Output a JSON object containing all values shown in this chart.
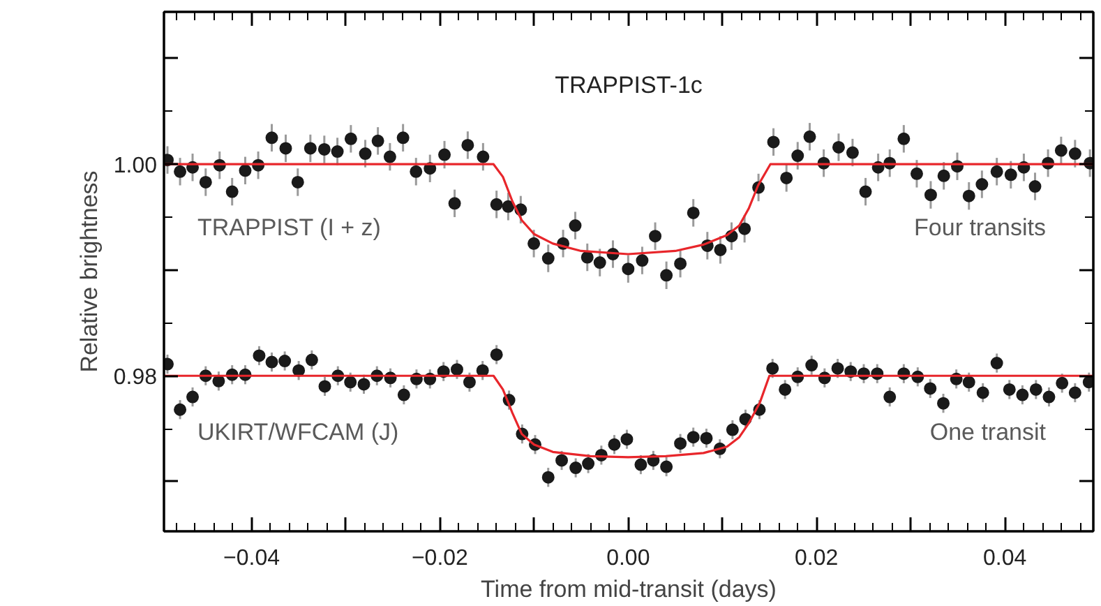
{
  "chart_data": {
    "type": "scatter",
    "title": "TRAPPIST-1c",
    "xlabel": "Time from mid-transit (days)",
    "ylabel": "Relative brightness",
    "annotations": [
      "Four transits",
      "One transit"
    ],
    "xlim": [
      -0.0493,
      0.0494
    ],
    "ylim": [
      0.9653,
      1.0144
    ],
    "xticks": [
      {
        "value": -0.04,
        "label": "−0.04"
      },
      {
        "value": -0.03,
        "label": null
      },
      {
        "value": -0.02,
        "label": "−0.02"
      },
      {
        "value": -0.01,
        "label": null
      },
      {
        "value": 0.0,
        "label": "0.00"
      },
      {
        "value": 0.01,
        "label": null
      },
      {
        "value": 0.02,
        "label": "0.02"
      },
      {
        "value": 0.03,
        "label": null
      },
      {
        "value": 0.04,
        "label": "0.04"
      }
    ],
    "yticks": [
      {
        "value": 0.97,
        "label": null
      },
      {
        "value": 0.98,
        "label": "0.98"
      },
      {
        "value": 0.99,
        "label": null
      },
      {
        "value": 1.0,
        "label": "1.00"
      },
      {
        "value": 1.01,
        "label": null
      }
    ],
    "grid": false,
    "series": [
      {
        "name": "TRAPPIST (I + z)",
        "marker": "circle",
        "color": "#1a1a1a",
        "x": [
          -0.04893,
          -0.04759,
          -0.04626,
          -0.04487,
          -0.04339,
          -0.04206,
          -0.04067,
          -0.03929,
          -0.03785,
          -0.03637,
          -0.03509,
          -0.03375,
          -0.03227,
          -0.03088,
          -0.02945,
          -0.02792,
          -0.02658,
          -0.0253,
          -0.02391,
          -0.02253,
          -0.02105,
          -0.01951,
          -0.01843,
          -0.01704,
          -0.01541,
          -0.01398,
          -0.01274,
          -0.01141,
          -0.01002,
          -0.00849,
          -0.00691,
          -0.00562,
          -0.00434,
          -0.00301,
          -0.00162,
          0.0,
          0.00149,
          0.00287,
          0.00406,
          0.00554,
          0.00692,
          0.00841,
          0.00979,
          0.01098,
          0.01236,
          0.01384,
          0.01543,
          0.01681,
          0.018,
          0.01928,
          0.02077,
          0.02235,
          0.02383,
          0.02521,
          0.02655,
          0.02778,
          0.02927,
          0.03065,
          0.03213,
          0.03352,
          0.03495,
          0.03619,
          0.03757,
          0.03915,
          0.04064,
          0.04202,
          0.04321,
          0.04459,
          0.04598,
          0.04746,
          0.04904
        ],
        "values": [
          1.0004,
          0.9993,
          0.9997,
          0.9983,
          0.9999,
          0.9974,
          0.9994,
          0.9999,
          1.0025,
          1.0015,
          0.9983,
          1.0015,
          1.0014,
          1.0012,
          1.0024,
          1.001,
          1.0022,
          1.0007,
          1.0025,
          0.9993,
          0.9996,
          1.0009,
          0.9963,
          1.0018,
          1.0007,
          0.9962,
          0.996,
          0.9957,
          0.9925,
          0.9911,
          0.9925,
          0.9942,
          0.9912,
          0.9907,
          0.9915,
          0.9901,
          0.9909,
          0.9932,
          0.9895,
          0.9906,
          0.9954,
          0.9923,
          0.9919,
          0.9932,
          0.9939,
          0.9978,
          1.0021,
          0.9987,
          1.0008,
          1.0026,
          1.0001,
          1.0016,
          1.0011,
          0.9974,
          0.9997,
          1.0001,
          1.0024,
          0.9991,
          0.9971,
          0.9989,
          0.9998,
          0.997,
          0.9981,
          0.9993,
          0.999,
          0.9997,
          0.9979,
          1.0001,
          1.0013,
          1.001,
          1.0001
        ],
        "errors": [
          0.0013,
          0.0013,
          0.0013,
          0.0013,
          0.0013,
          0.0013,
          0.0013,
          0.0013,
          0.0013,
          0.0013,
          0.0013,
          0.0013,
          0.0013,
          0.0013,
          0.0013,
          0.0013,
          0.0013,
          0.0013,
          0.0013,
          0.0013,
          0.0013,
          0.0013,
          0.0013,
          0.0013,
          0.0013,
          0.0013,
          0.0013,
          0.0013,
          0.0013,
          0.0013,
          0.0013,
          0.0013,
          0.0013,
          0.0013,
          0.0013,
          0.0013,
          0.0013,
          0.0013,
          0.0013,
          0.0013,
          0.0013,
          0.0013,
          0.0013,
          0.0013,
          0.0013,
          0.0013,
          0.0013,
          0.0013,
          0.0013,
          0.0013,
          0.0013,
          0.0013,
          0.0013,
          0.0013,
          0.0013,
          0.0013,
          0.0013,
          0.0013,
          0.0013,
          0.0013,
          0.0013,
          0.0013,
          0.0013,
          0.0013,
          0.0013,
          0.0013,
          0.0013,
          0.0013,
          0.0013,
          0.0013,
          0.0013
        ]
      },
      {
        "name": "UKIRT/WFCAM (J)",
        "marker": "circle",
        "color": "#1a1a1a",
        "x": [
          -0.04893,
          -0.04759,
          -0.04626,
          -0.04487,
          -0.04349,
          -0.04206,
          -0.04067,
          -0.03919,
          -0.03785,
          -0.03647,
          -0.03499,
          -0.0336,
          -0.03222,
          -0.03083,
          -0.0295,
          -0.02807,
          -0.02668,
          -0.02525,
          -0.02382,
          -0.02248,
          -0.02105,
          -0.01961,
          -0.01818,
          -0.01685,
          -0.01546,
          -0.01398,
          -0.01265,
          -0.01126,
          -0.00988,
          -0.00849,
          -0.00706,
          -0.00557,
          -0.00424,
          -0.00285,
          -0.00147,
          -0.00014,
          0.00134,
          0.00267,
          0.00406,
          0.00554,
          0.00692,
          0.00831,
          0.00974,
          0.01108,
          0.01246,
          0.01394,
          0.01533,
          0.01666,
          0.018,
          0.01948,
          0.02086,
          0.02225,
          0.02363,
          0.02502,
          0.02645,
          0.02778,
          0.02927,
          0.03075,
          0.03208,
          0.03347,
          0.03485,
          0.03619,
          0.03767,
          0.03915,
          0.04049,
          0.04187,
          0.04331,
          0.04469,
          0.04608,
          0.04746,
          0.04894
        ],
        "values": [
          0.9811,
          0.9768,
          0.978,
          0.98,
          0.9795,
          0.9801,
          0.9801,
          0.9819,
          0.9813,
          0.9814,
          0.9805,
          0.9815,
          0.979,
          0.98,
          0.9794,
          0.9792,
          0.98,
          0.9798,
          0.9782,
          0.9797,
          0.9797,
          0.9804,
          0.9806,
          0.9794,
          0.9805,
          0.982,
          0.9777,
          0.9745,
          0.9735,
          0.9704,
          0.972,
          0.9713,
          0.9717,
          0.9725,
          0.9735,
          0.974,
          0.9716,
          0.972,
          0.9714,
          0.9736,
          0.9742,
          0.9741,
          0.9731,
          0.9749,
          0.9759,
          0.9768,
          0.9807,
          0.9787,
          0.9799,
          0.981,
          0.9798,
          0.9807,
          0.9804,
          0.9802,
          0.9802,
          0.978,
          0.9802,
          0.9799,
          0.9788,
          0.9774,
          0.9797,
          0.9794,
          0.9784,
          0.9812,
          0.9787,
          0.9782,
          0.9787,
          0.978,
          0.9793,
          0.9784,
          0.9794
        ],
        "errors": [
          0.0009,
          0.0009,
          0.0009,
          0.0009,
          0.0009,
          0.0009,
          0.0009,
          0.0009,
          0.0009,
          0.0009,
          0.0009,
          0.0009,
          0.0009,
          0.0009,
          0.0009,
          0.0009,
          0.0009,
          0.0009,
          0.0009,
          0.0009,
          0.0009,
          0.0009,
          0.0009,
          0.0009,
          0.0009,
          0.0009,
          0.0009,
          0.0009,
          0.0009,
          0.0009,
          0.0009,
          0.0009,
          0.0009,
          0.0009,
          0.0009,
          0.0009,
          0.0009,
          0.0009,
          0.0009,
          0.0009,
          0.0009,
          0.0009,
          0.0009,
          0.0009,
          0.0009,
          0.0009,
          0.0009,
          0.0009,
          0.0009,
          0.0009,
          0.0009,
          0.0009,
          0.0009,
          0.0009,
          0.0009,
          0.0009,
          0.0009,
          0.0009,
          0.0009,
          0.0009,
          0.0009,
          0.0009,
          0.0009,
          0.0009,
          0.0009,
          0.0009,
          0.0009,
          0.0009,
          0.0009,
          0.0009,
          0.0009
        ]
      },
      {
        "type": "line",
        "color": "#e8262b",
        "x": [
          -0.0493,
          -0.0143,
          -0.0133,
          -0.0123,
          -0.0113,
          -0.01,
          -0.008,
          -0.005,
          0.0,
          0.005,
          0.008,
          0.0105,
          0.0118,
          0.0128,
          0.0138,
          0.0151,
          0.0494
        ],
        "values": [
          1.0,
          1.0,
          0.9988,
          0.9965,
          0.9947,
          0.9934,
          0.9925,
          0.9918,
          0.9915,
          0.9918,
          0.9924,
          0.9933,
          0.9942,
          0.9958,
          0.998,
          1.0,
          1.0
        ]
      },
      {
        "type": "line",
        "color": "#e8262b",
        "x": [
          -0.0493,
          -0.0143,
          -0.0133,
          -0.0123,
          -0.0113,
          -0.01,
          -0.008,
          -0.004,
          0.0,
          0.004,
          0.008,
          0.0105,
          0.0118,
          0.0128,
          0.014,
          0.015,
          0.0494
        ],
        "values": [
          0.98,
          0.98,
          0.9787,
          0.9765,
          0.9745,
          0.9735,
          0.9728,
          0.9724,
          0.9723,
          0.9724,
          0.9727,
          0.9733,
          0.9742,
          0.9755,
          0.9775,
          0.98,
          0.98
        ]
      }
    ]
  }
}
